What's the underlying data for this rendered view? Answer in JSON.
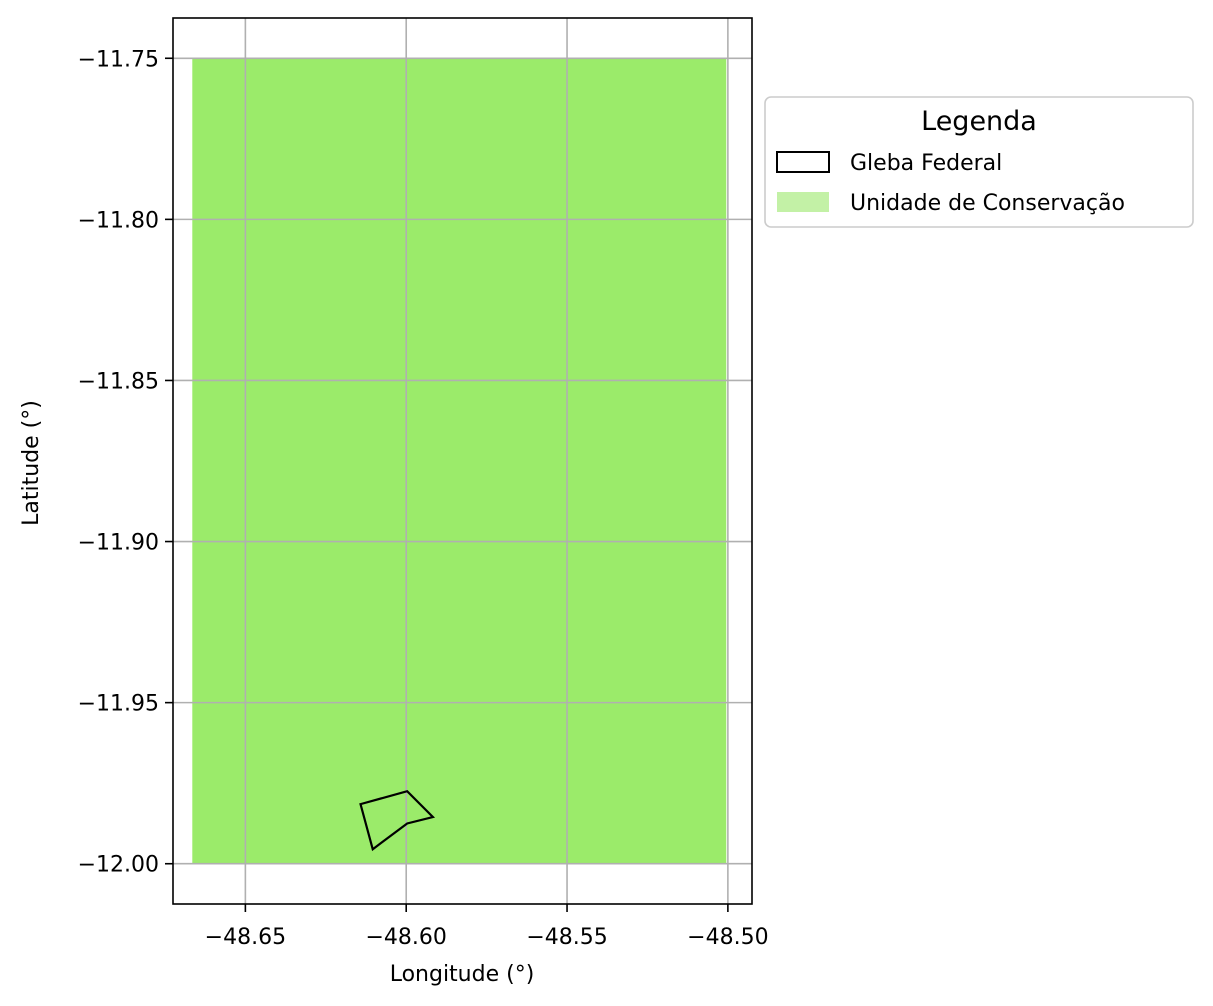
{
  "map": {
    "type": "map",
    "xlabel": "Longitude (°)",
    "ylabel": "Latitude (°)",
    "xlim": [
      -48.6725,
      -48.4925
    ],
    "ylim": [
      -12.0125,
      -11.7375
    ],
    "x_ticks": [
      -48.65,
      -48.6,
      -48.55,
      -48.5
    ],
    "x_tick_labels": [
      "−48.65",
      "−48.60",
      "−48.55",
      "−48.50"
    ],
    "y_ticks": [
      -11.75,
      -11.8,
      -11.85,
      -11.9,
      -11.95,
      -12.0
    ],
    "y_tick_labels": [
      "−11.75",
      "−11.80",
      "−11.85",
      "−11.90",
      "−11.95",
      "−12.00"
    ],
    "grid": true,
    "legend_position": "outside-upper-right",
    "conservation_unit": {
      "fill": "#9beb6a",
      "bounds": {
        "lon_min": -48.6665,
        "lon_max": -48.5005,
        "lat_min": -12.0,
        "lat_max": -11.75
      }
    },
    "gleba_federal": {
      "stroke": "#000000",
      "coordinates": [
        [
          -48.6142,
          -11.9815
        ],
        [
          -48.5997,
          -11.9775
        ],
        [
          -48.5917,
          -11.9855
        ],
        [
          -48.5997,
          -11.9875
        ],
        [
          -48.6104,
          -11.9955
        ],
        [
          -48.6142,
          -11.9815
        ]
      ]
    }
  },
  "legend": {
    "title": "Legenda",
    "entries": [
      {
        "label": "Gleba Federal",
        "swatch": "outline",
        "color": "#000000"
      },
      {
        "label": "Unidade de Conservação",
        "swatch": "fill",
        "color": "#c3f1a6"
      }
    ]
  }
}
